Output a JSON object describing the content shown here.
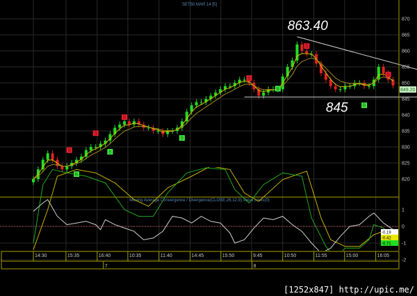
{
  "chart_data": [
    {
      "type": "candlestick",
      "title": "SET50 MAR 14  [5]",
      "ylim": [
        815,
        873
      ],
      "y_ticks": [
        870,
        865,
        860,
        855,
        850,
        845,
        840,
        835,
        830,
        825,
        820
      ],
      "closes": [
        820,
        823,
        826,
        828,
        826,
        824,
        823,
        824,
        825,
        826,
        827,
        829,
        830,
        830,
        831,
        832,
        834,
        836,
        837,
        838,
        837,
        838,
        837,
        836,
        836,
        835,
        835,
        834,
        835,
        835,
        836,
        838,
        841,
        843,
        844,
        844,
        845,
        846,
        847,
        848,
        849,
        849,
        850,
        851,
        851,
        850,
        848,
        846,
        847,
        848,
        848,
        848,
        852,
        855,
        857,
        862,
        860,
        859,
        859,
        856,
        853,
        851,
        849,
        848,
        848,
        849,
        849,
        850,
        850,
        849,
        849,
        851,
        855,
        853,
        851,
        849.2
      ],
      "last_price_label": "849.20",
      "buy_signals": [
        {
          "bar": 9,
          "price": 821.5
        },
        {
          "bar": 16,
          "price": 828.5
        },
        {
          "bar": 31,
          "price": 832.8
        },
        {
          "bar": 51,
          "price": 848.2
        },
        {
          "bar": 69,
          "price": 843
        }
      ],
      "sell_signals": [
        {
          "bar": 7.5,
          "price": 829
        },
        {
          "bar": 13,
          "price": 834.3
        },
        {
          "bar": 19,
          "price": 839.3
        },
        {
          "bar": 45,
          "price": 851.5
        },
        {
          "bar": 57,
          "price": 861.5
        },
        {
          "bar": 74,
          "price": 852.6
        }
      ],
      "buy_label": "B",
      "sell_label": "S",
      "annotations": [
        {
          "text": "863.40",
          "bar": 53,
          "price": 866.5
        },
        {
          "text": "845",
          "bar": 61,
          "price": 841
        }
      ],
      "trendline": {
        "from": {
          "bar": 55,
          "price": 864.4
        },
        "to": {
          "bar": 80,
          "price": 854.2
        }
      },
      "support_line": {
        "price": 845.6,
        "from_bar": 44
      },
      "colors": {
        "up": "#22dd22",
        "down": "#dd2222",
        "ma_fast": "#d8c000",
        "ma_slow": "#a08a20",
        "grid": "#2a2a2a",
        "axis": "#a8a000"
      }
    },
    {
      "type": "line",
      "title": "Moving Average Convergence / Divergence(CLOSE,26,12,9),Value Lines(0)",
      "ylim": [
        -2.3,
        3.6
      ],
      "y_ticks": [
        1,
        0,
        -1,
        -2
      ],
      "series": [
        {
          "color": "#d0d0d0",
          "points": [
            [
              0,
              0.9
            ],
            [
              2,
              1.4
            ],
            [
              3,
              1.6
            ],
            [
              5,
              0.6
            ],
            [
              7,
              0.1
            ],
            [
              9,
              0.2
            ],
            [
              11,
              0.3
            ],
            [
              13,
              0.1
            ],
            [
              14,
              -0.2
            ],
            [
              15,
              0.4
            ],
            [
              17,
              0.1
            ],
            [
              19,
              -0.1
            ],
            [
              21,
              -0.3
            ],
            [
              23,
              -0.8
            ],
            [
              25,
              -0.7
            ],
            [
              27,
              -0.3
            ],
            [
              29,
              0.6
            ],
            [
              31,
              0.5
            ],
            [
              33,
              0.2
            ],
            [
              35,
              0.6
            ],
            [
              37,
              0.3
            ],
            [
              39,
              0.2
            ],
            [
              41,
              -0.4
            ],
            [
              42,
              -1.0
            ],
            [
              44,
              -0.8
            ],
            [
              46,
              -0.1
            ],
            [
              48,
              0.5
            ],
            [
              50,
              0.4
            ],
            [
              52,
              0.6
            ],
            [
              54,
              0.1
            ],
            [
              56,
              -0.3
            ],
            [
              58,
              -1.0
            ],
            [
              60,
              -1.6
            ],
            [
              62,
              -1.3
            ],
            [
              64,
              -0.6
            ],
            [
              66,
              0.0
            ],
            [
              68,
              0.1
            ],
            [
              70,
              0.6
            ],
            [
              71,
              0.8
            ],
            [
              73,
              0.2
            ],
            [
              75,
              -0.19
            ]
          ]
        },
        {
          "color": "#22aa22",
          "points": [
            [
              0,
              -1.0
            ],
            [
              2,
              2.5
            ],
            [
              4,
              3.4
            ],
            [
              7,
              3.2
            ],
            [
              11,
              3.0
            ],
            [
              15,
              2.6
            ],
            [
              19,
              1.0
            ],
            [
              22,
              0.6
            ],
            [
              25,
              0.6
            ],
            [
              28,
              2.0
            ],
            [
              32,
              3.2
            ],
            [
              36,
              3.5
            ],
            [
              40,
              3.4
            ],
            [
              42,
              2.2
            ],
            [
              45,
              1.4
            ],
            [
              48,
              2.5
            ],
            [
              52,
              3.2
            ],
            [
              56,
              3.0
            ],
            [
              58,
              0.5
            ],
            [
              61,
              -1.2
            ],
            [
              63,
              -1.9
            ],
            [
              65,
              -1.3
            ],
            [
              68,
              -1.3
            ],
            [
              70,
              -0.8
            ],
            [
              71,
              0.1
            ],
            [
              73,
              -0.1
            ],
            [
              75,
              -0.71
            ]
          ]
        },
        {
          "color": "#c8b400",
          "points": [
            [
              0,
              -1.4
            ],
            [
              3,
              1.0
            ],
            [
              5,
              3.0
            ],
            [
              9,
              3.4
            ],
            [
              13,
              3.2
            ],
            [
              17,
              2.6
            ],
            [
              21,
              1.6
            ],
            [
              24,
              1.2
            ],
            [
              28,
              2.3
            ],
            [
              33,
              3.0
            ],
            [
              37,
              3.6
            ],
            [
              41,
              3.4
            ],
            [
              44,
              2.0
            ],
            [
              47,
              1.5
            ],
            [
              52,
              2.8
            ],
            [
              57,
              3.3
            ],
            [
              60,
              0.5
            ],
            [
              62,
              -0.8
            ],
            [
              65,
              -1.2
            ],
            [
              68,
              -1.2
            ],
            [
              71,
              -0.5
            ],
            [
              73,
              -0.3
            ],
            [
              75,
              -0.42
            ]
          ]
        }
      ],
      "value_labels": [
        {
          "text": "-0.19",
          "bg": "#ffffff"
        },
        {
          "text": "-0.42",
          "bg": "#e8e800"
        },
        {
          "text": "-0.71",
          "bg": "#22dd22"
        }
      ],
      "zero_line_color": "#b04050"
    }
  ],
  "x_axis": {
    "time_ticks": [
      {
        "bar": 0,
        "label": "14:30"
      },
      {
        "bar": 6.8,
        "label": "15:35"
      },
      {
        "bar": 13.3,
        "label": "16:40"
      },
      {
        "bar": 19.7,
        "label": "10:35"
      },
      {
        "bar": 26.2,
        "label": "11:40"
      },
      {
        "bar": 32.7,
        "label": "14:45"
      },
      {
        "bar": 39.1,
        "label": "15:50"
      },
      {
        "bar": 45.5,
        "label": "9:45"
      },
      {
        "bar": 52,
        "label": "10:50"
      },
      {
        "bar": 58.5,
        "label": "11:55"
      },
      {
        "bar": 64.9,
        "label": "15:00"
      },
      {
        "bar": 71.4,
        "label": "16:05"
      }
    ],
    "date_ticks": [
      {
        "bar": 14.6,
        "label": "7"
      },
      {
        "bar": 45.6,
        "label": "8"
      }
    ]
  },
  "watermark": "[1252x847] http://upic.me/"
}
